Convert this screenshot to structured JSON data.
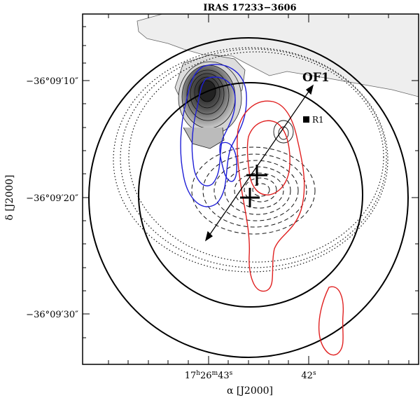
{
  "chart_data": {
    "type": "contour",
    "title": "IRAS 17233−3606",
    "xlabel": "α [J2000]",
    "ylabel": "δ [J2000]",
    "x_ticks": [
      {
        "main": "17",
        "sup1": "h",
        "mid": "26",
        "sup2": "m",
        "end": "43",
        "sup3": "s"
      },
      {
        "main": "42",
        "sup1": "s"
      }
    ],
    "y_ticks": [
      "−36°09′10″",
      "−36°09′20″",
      "−36°09′30″"
    ],
    "annotations": {
      "outflow": "OF1",
      "source": "R1"
    },
    "colors": {
      "blue_lobe": "#1f1fd6",
      "red_lobe": "#e02020",
      "filled_emission": "#3a3a3a",
      "extended_emission": "#eeeeee"
    },
    "grid": false,
    "legend": "none"
  }
}
